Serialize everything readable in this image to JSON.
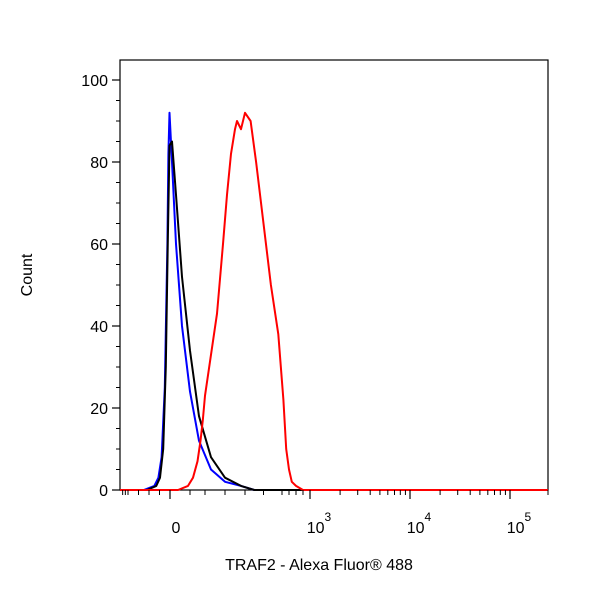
{
  "chart_data": {
    "type": "line",
    "title": "",
    "xlabel": "TRAF2 - Alexa Fluor® 488",
    "ylabel": "Count",
    "x_scale": "biexponential",
    "xlim": [
      -700,
      200000
    ],
    "ylim": [
      0,
      100
    ],
    "grid": false,
    "legend": "none",
    "y_ticks": [
      {
        "value": 0,
        "label": "0"
      },
      {
        "value": 20,
        "label": "20"
      },
      {
        "value": 40,
        "label": "40"
      },
      {
        "value": 60,
        "label": "60"
      },
      {
        "value": 80,
        "label": "80"
      },
      {
        "value": 100,
        "label": "100"
      }
    ],
    "x_ticks": [
      {
        "value": 0,
        "base": "0",
        "exp": ""
      },
      {
        "value": 1000,
        "base": "10",
        "exp": "3"
      },
      {
        "value": 10000,
        "base": "10",
        "exp": "4"
      },
      {
        "value": 100000,
        "base": "10",
        "exp": "5"
      }
    ],
    "series": [
      {
        "color": "#0000ff",
        "x": [
          -400,
          -250,
          -150,
          -110,
          -80,
          -50,
          -25,
          -15,
          -5,
          10,
          30,
          60,
          100,
          160,
          230,
          300,
          380,
          450,
          700,
          2000,
          200000
        ],
        "y": [
          0,
          0,
          1,
          3,
          8,
          25,
          60,
          82,
          92,
          80,
          60,
          40,
          24,
          12,
          5,
          2,
          1,
          0,
          0,
          0,
          0
        ]
      },
      {
        "color": "#000000",
        "x": [
          -400,
          -220,
          -130,
          -95,
          -65,
          -40,
          -20,
          -5,
          10,
          30,
          60,
          100,
          160,
          230,
          300,
          380,
          450,
          520,
          700,
          2000,
          200000
        ],
        "y": [
          0,
          0,
          1,
          3,
          10,
          30,
          62,
          84,
          85,
          72,
          52,
          34,
          18,
          8,
          3,
          1,
          0,
          0,
          0,
          0,
          0
        ]
      },
      {
        "color": "#ff0000",
        "x": [
          -700,
          40,
          90,
          120,
          150,
          170,
          185,
          200,
          230,
          260,
          290,
          310,
          330,
          350,
          360,
          380,
          400,
          430,
          460,
          500,
          540,
          580,
          620,
          660,
          700,
          740,
          800,
          900,
          2000,
          200000
        ],
        "y": [
          0,
          0,
          1,
          3,
          7,
          12,
          17,
          23,
          33,
          43,
          60,
          72,
          82,
          88,
          90,
          88,
          92,
          90,
          80,
          65,
          50,
          38,
          22,
          10,
          5,
          2,
          1,
          0,
          0,
          0
        ]
      }
    ]
  }
}
